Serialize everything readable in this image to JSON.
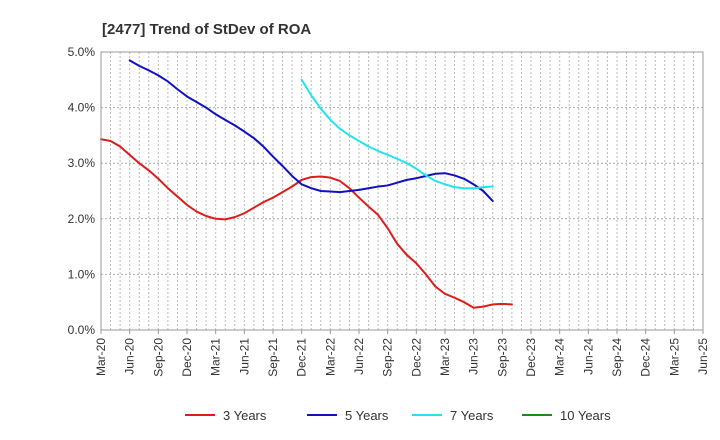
{
  "chart_data": {
    "type": "line",
    "title": "[2477]  Trend of StDev of ROA",
    "xlabel": "",
    "ylabel": "",
    "x_ticks": [
      "Mar-20",
      "Jun-20",
      "Sep-20",
      "Dec-20",
      "Mar-21",
      "Jun-21",
      "Sep-21",
      "Dec-21",
      "Mar-22",
      "Jun-22",
      "Sep-22",
      "Dec-22",
      "Mar-23",
      "Jun-23",
      "Sep-23",
      "Dec-23",
      "Mar-24",
      "Jun-24",
      "Sep-24",
      "Dec-24",
      "Mar-25",
      "Jun-25"
    ],
    "y_ticks": [
      "0.0%",
      "1.0%",
      "2.0%",
      "3.0%",
      "4.0%",
      "5.0%"
    ],
    "ylim": [
      0,
      5
    ],
    "grid": true,
    "legend_position": "bottom",
    "series": [
      {
        "name": "3 Years",
        "color": "#dd1c1c",
        "points": [
          [
            0,
            3.43
          ],
          [
            0.333,
            3.4
          ],
          [
            0.667,
            3.3
          ],
          [
            1,
            3.15
          ],
          [
            1.333,
            3.0
          ],
          [
            1.667,
            2.87
          ],
          [
            2,
            2.72
          ],
          [
            2.333,
            2.55
          ],
          [
            2.667,
            2.4
          ],
          [
            3,
            2.25
          ],
          [
            3.333,
            2.13
          ],
          [
            3.667,
            2.05
          ],
          [
            4,
            2.0
          ],
          [
            4.333,
            1.99
          ],
          [
            4.667,
            2.03
          ],
          [
            5,
            2.1
          ],
          [
            5.333,
            2.2
          ],
          [
            5.667,
            2.3
          ],
          [
            6,
            2.38
          ],
          [
            6.333,
            2.48
          ],
          [
            6.667,
            2.58
          ],
          [
            7,
            2.7
          ],
          [
            7.333,
            2.75
          ],
          [
            7.667,
            2.76
          ],
          [
            8,
            2.74
          ],
          [
            8.333,
            2.68
          ],
          [
            8.667,
            2.55
          ],
          [
            9,
            2.38
          ],
          [
            9.333,
            2.22
          ],
          [
            9.667,
            2.07
          ],
          [
            10,
            1.83
          ],
          [
            10.333,
            1.55
          ],
          [
            10.667,
            1.35
          ],
          [
            11,
            1.2
          ],
          [
            11.333,
            1.0
          ],
          [
            11.667,
            0.78
          ],
          [
            12,
            0.65
          ],
          [
            12.333,
            0.58
          ],
          [
            12.667,
            0.5
          ],
          [
            13,
            0.4
          ],
          [
            13.333,
            0.42
          ],
          [
            13.667,
            0.46
          ],
          [
            14,
            0.47
          ],
          [
            14.333,
            0.46
          ]
        ]
      },
      {
        "name": "5 Years",
        "color": "#1010c0",
        "points": [
          [
            1,
            4.85
          ],
          [
            1.333,
            4.75
          ],
          [
            1.667,
            4.67
          ],
          [
            2,
            4.58
          ],
          [
            2.333,
            4.47
          ],
          [
            2.667,
            4.33
          ],
          [
            3,
            4.2
          ],
          [
            3.333,
            4.1
          ],
          [
            3.667,
            4.0
          ],
          [
            4,
            3.88
          ],
          [
            4.333,
            3.78
          ],
          [
            4.667,
            3.68
          ],
          [
            5,
            3.57
          ],
          [
            5.333,
            3.45
          ],
          [
            5.667,
            3.3
          ],
          [
            6,
            3.12
          ],
          [
            6.333,
            2.95
          ],
          [
            6.667,
            2.77
          ],
          [
            7,
            2.62
          ],
          [
            7.333,
            2.55
          ],
          [
            7.667,
            2.5
          ],
          [
            8,
            2.49
          ],
          [
            8.333,
            2.48
          ],
          [
            8.667,
            2.5
          ],
          [
            9,
            2.52
          ],
          [
            9.333,
            2.55
          ],
          [
            9.667,
            2.58
          ],
          [
            10,
            2.6
          ],
          [
            10.333,
            2.65
          ],
          [
            10.667,
            2.7
          ],
          [
            11,
            2.73
          ],
          [
            11.333,
            2.77
          ],
          [
            11.667,
            2.81
          ],
          [
            12,
            2.82
          ],
          [
            12.333,
            2.78
          ],
          [
            12.667,
            2.72
          ],
          [
            13,
            2.62
          ],
          [
            13.333,
            2.5
          ],
          [
            13.667,
            2.32
          ]
        ]
      },
      {
        "name": "7 Years",
        "color": "#22e3ee",
        "points": [
          [
            7,
            4.5
          ],
          [
            7.333,
            4.22
          ],
          [
            7.667,
            3.98
          ],
          [
            8,
            3.78
          ],
          [
            8.333,
            3.62
          ],
          [
            8.667,
            3.5
          ],
          [
            9,
            3.4
          ],
          [
            9.333,
            3.3
          ],
          [
            9.667,
            3.22
          ],
          [
            10,
            3.15
          ],
          [
            10.333,
            3.08
          ],
          [
            10.667,
            3.0
          ],
          [
            11,
            2.9
          ],
          [
            11.333,
            2.78
          ],
          [
            11.667,
            2.68
          ],
          [
            12,
            2.62
          ],
          [
            12.333,
            2.57
          ],
          [
            12.667,
            2.55
          ],
          [
            13,
            2.55
          ],
          [
            13.333,
            2.57
          ],
          [
            13.667,
            2.58
          ]
        ]
      },
      {
        "name": "10 Years",
        "color": "#1a8a1a",
        "points": []
      }
    ]
  }
}
